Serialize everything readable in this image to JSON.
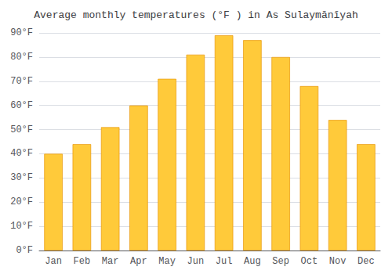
{
  "chart_data": {
    "type": "bar",
    "title": "Average monthly temperatures (°F ) in As Sulaymānīyah",
    "categories": [
      "Jan",
      "Feb",
      "Mar",
      "Apr",
      "May",
      "Jun",
      "Jul",
      "Aug",
      "Sep",
      "Oct",
      "Nov",
      "Dec"
    ],
    "values": [
      40,
      44,
      51,
      60,
      71,
      81,
      89,
      87,
      80,
      68,
      54,
      44
    ],
    "color": "#FFCA3A",
    "ylim": [
      0,
      90
    ],
    "yticks": [
      {
        "value": 0,
        "label": "0°F"
      },
      {
        "value": 10,
        "label": "10°F"
      },
      {
        "value": 20,
        "label": "20°F"
      },
      {
        "value": 30,
        "label": "30°F"
      },
      {
        "value": 40,
        "label": "40°F"
      },
      {
        "value": 50,
        "label": "50°F"
      },
      {
        "value": 60,
        "label": "60°F"
      },
      {
        "value": 70,
        "label": "70°F"
      },
      {
        "value": 80,
        "label": "80°F"
      },
      {
        "value": 90,
        "label": "90°F"
      }
    ],
    "grid": true
  }
}
